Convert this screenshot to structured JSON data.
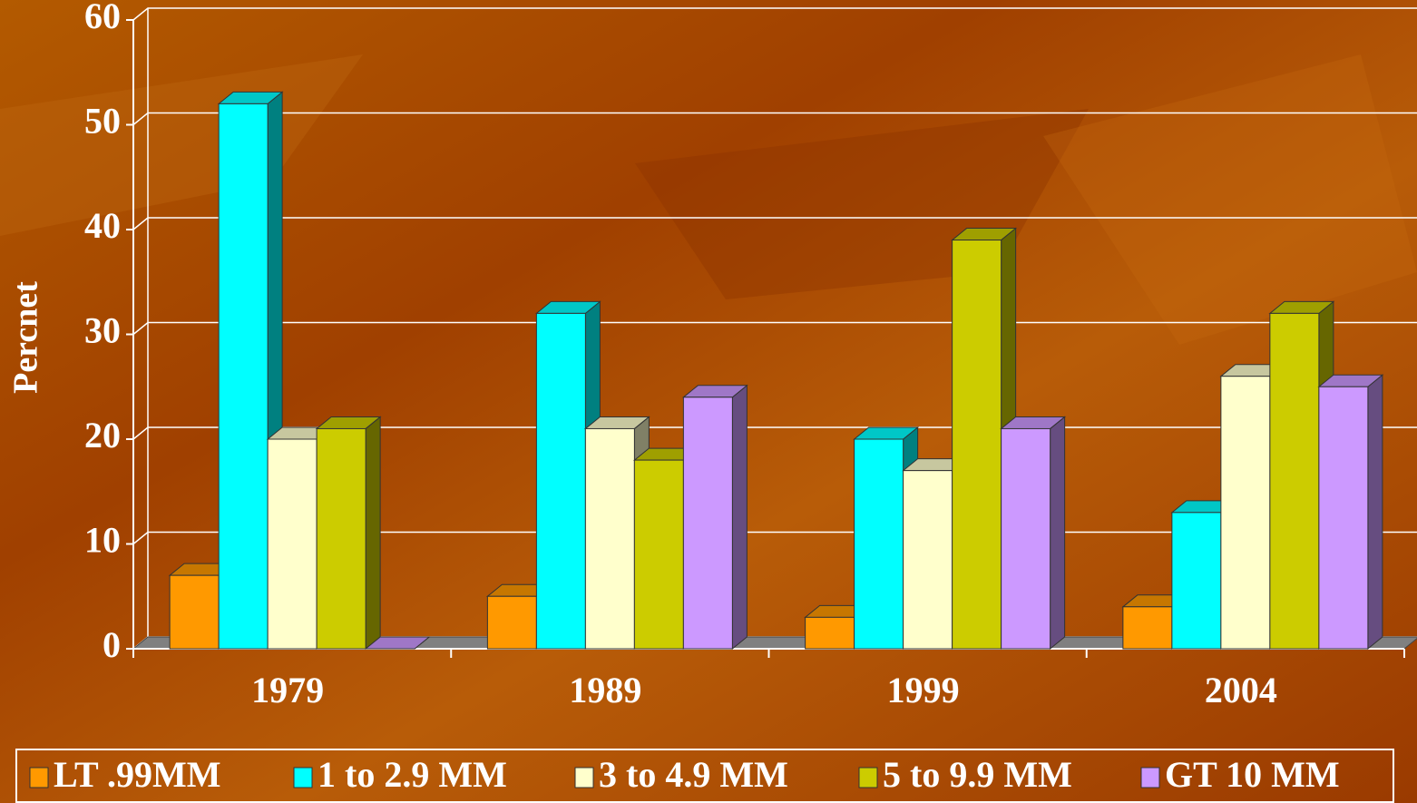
{
  "chart_data": {
    "type": "bar3d",
    "y_label": "Percnet",
    "categories": [
      "1979",
      "1989",
      "1999",
      "2004"
    ],
    "series": [
      {
        "name": "LT .99MM",
        "color": "#ff9900",
        "values": [
          7,
          5,
          3,
          4
        ]
      },
      {
        "name": "1 to 2.9 MM",
        "color": "#00ffff",
        "values": [
          52,
          32,
          20,
          13
        ]
      },
      {
        "name": "3 to 4.9 MM",
        "color": "#ffffcc",
        "values": [
          20,
          21,
          17,
          26
        ]
      },
      {
        "name": "5 to 9.9 MM",
        "color": "#cccc00",
        "values": [
          21,
          18,
          39,
          32
        ]
      },
      {
        "name": "GT 10 MM",
        "color": "#cc99ff",
        "values": [
          0,
          24,
          21,
          25
        ]
      }
    ],
    "ylim": [
      0,
      60
    ],
    "yticks": [
      0,
      10,
      20,
      30,
      40,
      50,
      60
    ],
    "grid": true,
    "legend": "bottom"
  }
}
